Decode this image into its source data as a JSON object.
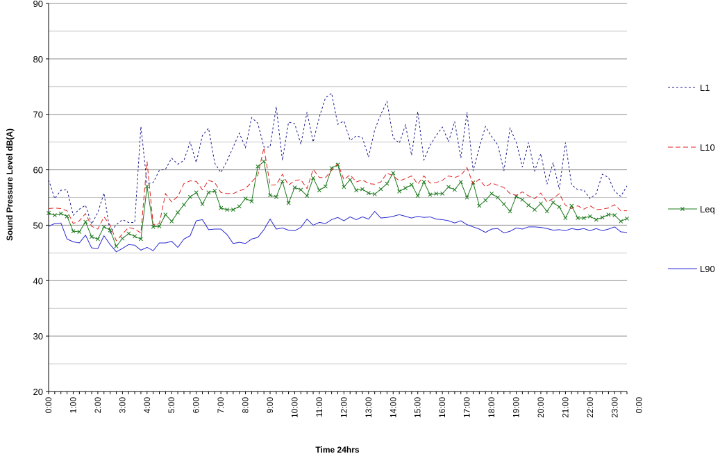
{
  "chart_data": {
    "type": "line",
    "title": "",
    "xlabel": "Time 24hrs",
    "ylabel": "Sound Pressure Level dB(A)",
    "ylim": [
      20,
      90
    ],
    "y_ticks": [
      "20",
      "30",
      "40",
      "50",
      "60",
      "70",
      "80",
      "90"
    ],
    "x_tick_labels": [
      "0:00",
      "1:00",
      "2:00",
      "3:00",
      "4:00",
      "5:00",
      "6:00",
      "7:00",
      "8:00",
      "9:00",
      "10:00",
      "11:00",
      "12:00",
      "13:00",
      "14:00",
      "15:00",
      "16:00",
      "17:00",
      "18:00",
      "19:00",
      "20:00",
      "21:00",
      "22:00",
      "23:00",
      "0:00"
    ],
    "x_unit": "hours (15-minute intervals)",
    "grid": "horizontal major and minor gridlines",
    "legend_position": "right",
    "series": [
      {
        "name": "L1",
        "color": "#1a1a8c",
        "style": "dotted",
        "marker": "none",
        "values": [
          58.2,
          54.8,
          56.3,
          56.4,
          51.8,
          52.9,
          53.6,
          50.2,
          52.3,
          55.8,
          48.6,
          50.1,
          51.0,
          50.5,
          50.5,
          67.8,
          57.5,
          57.7,
          59.9,
          60.1,
          62.1,
          61.0,
          61.7,
          65.0,
          61.3,
          66.2,
          67.5,
          61.2,
          59.5,
          61.6,
          64.1,
          66.6,
          64.0,
          69.4,
          68.4,
          64.1,
          64.1,
          71.4,
          61.7,
          68.6,
          68.3,
          64.6,
          70.4,
          65.0,
          69.5,
          73.0,
          73.8,
          68.2,
          68.8,
          65.3,
          66.1,
          65.8,
          62.3,
          67.2,
          70.0,
          72.3,
          65.8,
          64.8,
          68.1,
          62.6,
          70.5,
          61.8,
          64.4,
          66.2,
          67.7,
          65.1,
          68.7,
          62.1,
          70.4,
          59.8,
          64.0,
          67.8,
          66.0,
          64.5,
          59.8,
          67.5,
          65.0,
          60.5,
          64.9,
          59.8,
          62.9,
          57.4,
          61.3,
          56.5,
          64.9,
          57.3,
          56.4,
          56.3,
          54.8,
          55.7,
          59.2,
          58.6,
          56.1,
          55.2,
          57.1
        ]
      },
      {
        "name": "L10",
        "color": "#e02020",
        "style": "dashed",
        "marker": "none",
        "values": [
          53.0,
          53.1,
          53.0,
          52.6,
          50.3,
          50.8,
          52.1,
          49.8,
          49.3,
          51.5,
          50.0,
          47.2,
          48.4,
          49.6,
          49.3,
          48.6,
          61.5,
          50.1,
          50.3,
          55.7,
          54.2,
          55.2,
          57.5,
          58.0,
          57.9,
          56.4,
          58.1,
          57.7,
          55.9,
          55.7,
          55.7,
          56.2,
          56.6,
          57.8,
          59.0,
          64.0,
          57.2,
          57.3,
          59.2,
          57.2,
          58.1,
          58.2,
          56.6,
          60.1,
          58.6,
          58.6,
          59.9,
          61.1,
          58.2,
          59.1,
          57.8,
          58.2,
          57.5,
          57.4,
          57.8,
          59.4,
          58.9,
          58.0,
          58.4,
          58.9,
          57.4,
          58.9,
          57.6,
          57.7,
          58.1,
          58.9,
          58.6,
          59.0,
          60.4,
          57.4,
          58.3,
          56.9,
          57.6,
          57.2,
          56.8,
          55.7,
          55.4,
          56.0,
          55.3,
          54.8,
          55.8,
          54.2,
          54.8,
          55.7,
          53.6,
          53.0,
          53.5,
          52.9,
          53.5,
          52.8,
          52.9,
          53.1,
          53.7,
          52.6,
          52.6
        ]
      },
      {
        "name": "Leq",
        "color": "#1d7a1d",
        "style": "solid",
        "marker": "x",
        "values": [
          52.2,
          51.8,
          52.1,
          51.6,
          48.9,
          48.8,
          50.6,
          47.9,
          47.5,
          49.7,
          49.1,
          46.2,
          47.6,
          48.5,
          48.0,
          47.5,
          57.0,
          49.7,
          49.8,
          51.9,
          50.7,
          52.3,
          53.7,
          55.1,
          55.9,
          53.8,
          55.9,
          56.2,
          53.1,
          52.8,
          52.8,
          53.4,
          54.8,
          54.3,
          60.6,
          61.5,
          55.4,
          55.1,
          57.9,
          54.0,
          56.8,
          56.4,
          55.3,
          58.5,
          56.3,
          57.0,
          60.3,
          60.9,
          56.9,
          58.2,
          56.3,
          56.5,
          55.8,
          55.6,
          56.5,
          57.5,
          59.4,
          56.1,
          56.7,
          57.3,
          55.3,
          57.8,
          55.5,
          55.7,
          55.7,
          56.9,
          56.4,
          57.8,
          55.0,
          57.7,
          53.5,
          54.5,
          55.7,
          55.0,
          53.8,
          52.5,
          55.2,
          54.6,
          53.6,
          52.8,
          53.9,
          52.5,
          54.1,
          53.3,
          51.3,
          53.5,
          51.3,
          51.3,
          51.6,
          51.0,
          51.4,
          51.9,
          51.8,
          50.7,
          51.2
        ]
      },
      {
        "name": "L90",
        "color": "#2828d0",
        "style": "solid",
        "marker": "none",
        "values": [
          49.8,
          50.3,
          50.4,
          47.5,
          47.0,
          46.8,
          48.2,
          45.9,
          45.8,
          48.1,
          46.5,
          45.2,
          45.8,
          46.5,
          46.4,
          45.5,
          46.0,
          45.4,
          46.8,
          46.8,
          47.1,
          46.0,
          47.5,
          48.1,
          50.8,
          51.0,
          49.2,
          49.3,
          49.3,
          48.3,
          46.7,
          46.9,
          46.7,
          47.5,
          47.8,
          49.2,
          51.1,
          49.3,
          49.5,
          49.1,
          49.0,
          49.6,
          51.1,
          50.0,
          50.5,
          50.3,
          51.0,
          51.4,
          50.8,
          51.5,
          51.0,
          51.5,
          51.1,
          52.5,
          51.3,
          51.4,
          51.6,
          51.9,
          51.6,
          51.3,
          51.6,
          51.4,
          51.5,
          51.1,
          51.0,
          50.8,
          50.4,
          50.8,
          50.1,
          49.7,
          49.3,
          48.7,
          49.3,
          49.4,
          48.6,
          48.9,
          49.5,
          49.3,
          49.7,
          49.7,
          49.6,
          49.4,
          49.1,
          49.2,
          49.0,
          49.4,
          49.2,
          49.4,
          49.0,
          49.4,
          49.0,
          49.3,
          49.7,
          48.8,
          48.7
        ]
      }
    ]
  }
}
